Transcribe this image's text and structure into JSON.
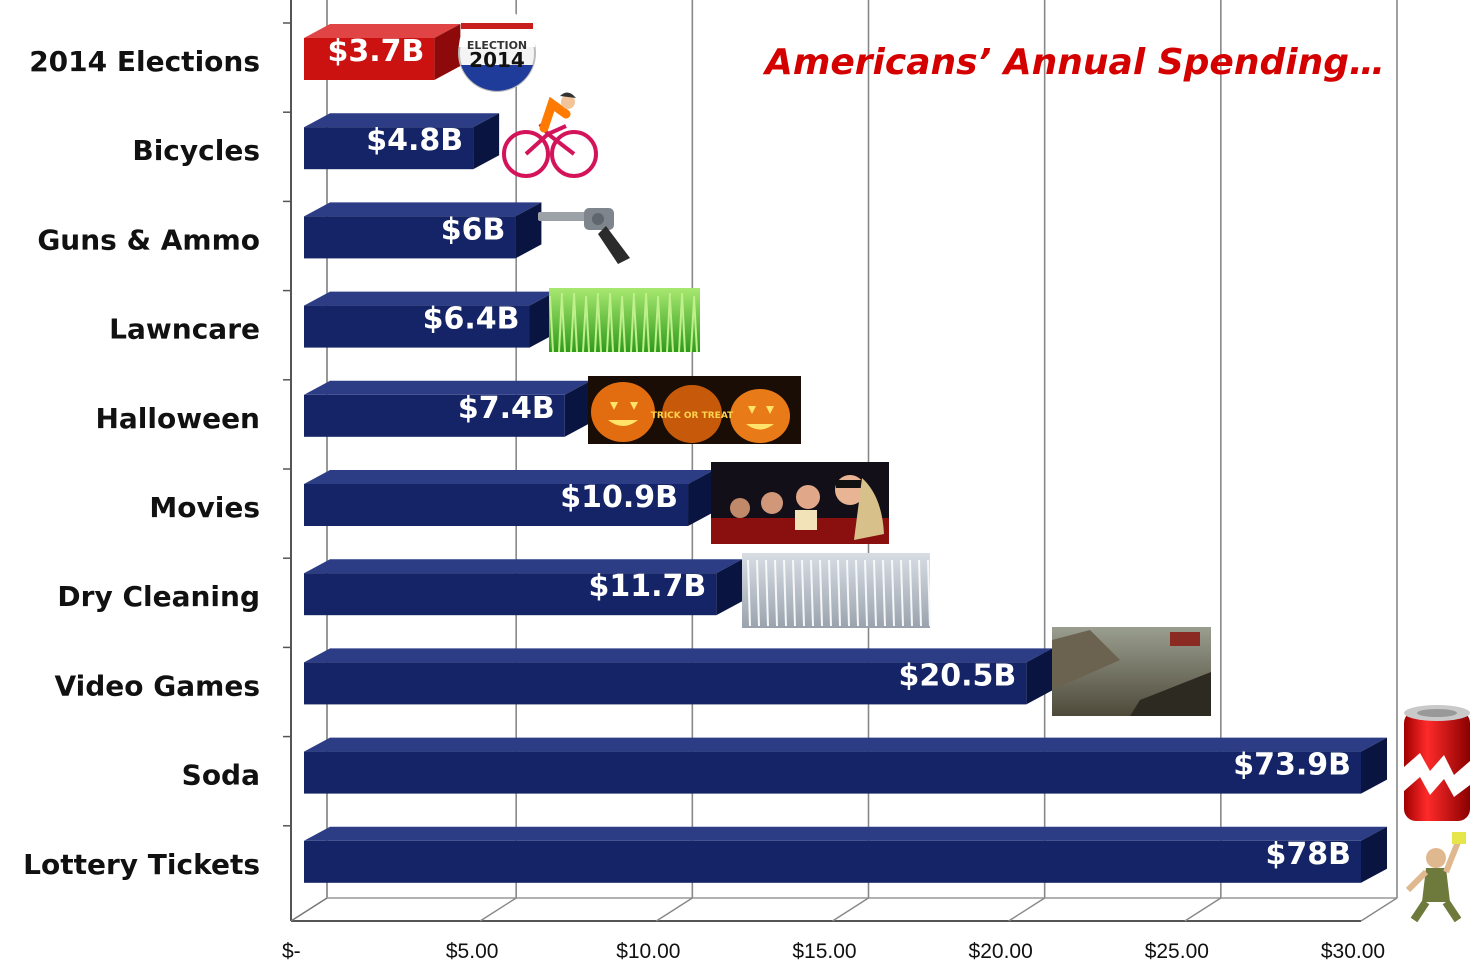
{
  "chart_data": {
    "type": "bar",
    "orientation": "horizontal",
    "title": "Americans’ Annual Spending…",
    "categories": [
      "2014 Elections",
      "Bicycles",
      "Guns & Ammo",
      "Lawncare",
      "Halloween",
      "Movies",
      "Dry Cleaning",
      "Video Games",
      "Soda",
      "Lottery Tickets"
    ],
    "values": [
      3.7,
      4.8,
      6,
      6.4,
      7.4,
      10.9,
      11.7,
      20.5,
      73.9,
      78
    ],
    "value_labels": [
      "$3.7B",
      "$4.8B",
      "$6B",
      "$6.4B",
      "$7.4B",
      "$10.9B",
      "$11.7B",
      "$20.5B",
      "$73.9B",
      "$78B"
    ],
    "x_ticks": [
      0,
      5,
      10,
      15,
      20,
      25,
      30
    ],
    "x_tick_labels": [
      "$-",
      "$5.00",
      "$10.00",
      "$15.00",
      "$20.00",
      "$25.00",
      "$30.00"
    ],
    "xlim": [
      0,
      30
    ],
    "grid": "vertical",
    "bars_clipped_at_axis_max": true,
    "colors": {
      "highlight": "#cc1111",
      "bar": "#142466",
      "title": "#d40000"
    },
    "highlight_index": 0,
    "pictures": [
      "election-2014-button",
      "cyclist",
      "revolver",
      "grass",
      "jack-o-lanterns",
      "movie-audience",
      "dry-cleaning-rack",
      "video-game-screenshot",
      "soda-can",
      "lottery-winner"
    ],
    "election_badge": {
      "line1": "ELECTION",
      "line2": "2014"
    },
    "pumpkin_text": "TRICK OR TREAT"
  }
}
